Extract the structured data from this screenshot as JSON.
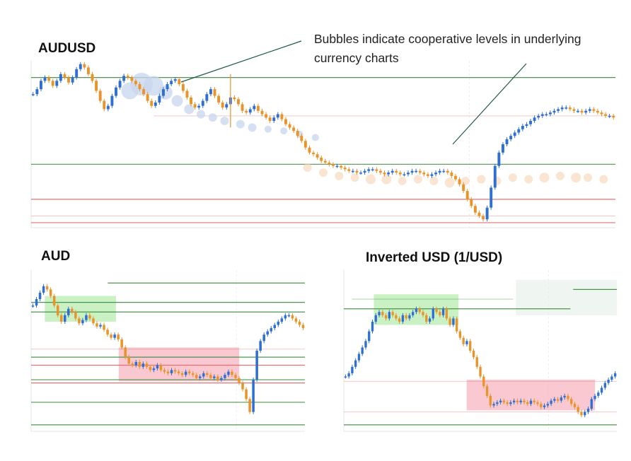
{
  "annotation": {
    "text": "Bubbles indicate cooperative levels in underlying currency charts"
  },
  "colors": {
    "up": "#2f6fd0",
    "down": "#e8942a",
    "support": "#3c8a3c",
    "resistance": "#e06666",
    "green_zone": "#b8ecb0",
    "red_zone": "#f7b6c0",
    "bubble_blue": "#c7d6ee",
    "bubble_orange": "#f6d3b4",
    "annotation_line": "#1f5a4c"
  },
  "chart_data": [
    {
      "id": "main",
      "title": "AUDUSD",
      "type": "candlestick",
      "ylim": [
        0,
        100
      ],
      "series": [
        {
          "name": "",
          "values": [
            80,
            83,
            88,
            90,
            88,
            85,
            88,
            92,
            90,
            87,
            90,
            95,
            98,
            96,
            92,
            88,
            82,
            76,
            71,
            73,
            79,
            84,
            88,
            91,
            90,
            88,
            86,
            83,
            80,
            76,
            73,
            75,
            79,
            83,
            86,
            88,
            89,
            86,
            82,
            78,
            74,
            72,
            73,
            76,
            80,
            83,
            79,
            75,
            72,
            74,
            78,
            77,
            74,
            70,
            69,
            71,
            73,
            70,
            68,
            66,
            64,
            66,
            68,
            65,
            62,
            60,
            58,
            55,
            52,
            48,
            45,
            44,
            42,
            40,
            39,
            38,
            37,
            37,
            36,
            35,
            34,
            34,
            33,
            33,
            34,
            35,
            35,
            34,
            33,
            32,
            33,
            34,
            33,
            32,
            32,
            33,
            34,
            34,
            33,
            32,
            31,
            32,
            33,
            34,
            34,
            33,
            31,
            29,
            26,
            22,
            17,
            13,
            9,
            7,
            5,
            12,
            24,
            37,
            45,
            50,
            53,
            55,
            57,
            59,
            61,
            62,
            64,
            66,
            67,
            68,
            68,
            69,
            70,
            71,
            72,
            72,
            71,
            70,
            70,
            69,
            70,
            71,
            70,
            69,
            68,
            67,
            67,
            66
          ]
        }
      ],
      "horizontal_levels": [
        {
          "value": 90,
          "kind": "support"
        },
        {
          "value": 67,
          "kind": "resistance_faint"
        },
        {
          "value": 38,
          "kind": "support"
        },
        {
          "value": 17,
          "kind": "resistance"
        },
        {
          "value": 7,
          "kind": "resistance_faint"
        },
        {
          "value": 3,
          "kind": "resistance"
        }
      ],
      "spike": {
        "index": 50,
        "value": 92
      },
      "bubbles_blue": [
        [
          25,
          82,
          12
        ],
        [
          28,
          86,
          16
        ],
        [
          31,
          85,
          14
        ],
        [
          34,
          81,
          10
        ],
        [
          37,
          76,
          8
        ],
        [
          40,
          71,
          7
        ],
        [
          43,
          68,
          6
        ],
        [
          46,
          66,
          6
        ],
        [
          49,
          64,
          6
        ],
        [
          53,
          62,
          6
        ],
        [
          56,
          60,
          6
        ],
        [
          60,
          59,
          5
        ],
        [
          64,
          58,
          5
        ],
        [
          68,
          56,
          5
        ],
        [
          72,
          54,
          5
        ]
      ],
      "bubbles_orange": [
        [
          70,
          36,
          6
        ],
        [
          74,
          33,
          6
        ],
        [
          78,
          31,
          6
        ],
        [
          82,
          30,
          6
        ],
        [
          86,
          29,
          7
        ],
        [
          90,
          29,
          7
        ],
        [
          94,
          28,
          6
        ],
        [
          98,
          29,
          6
        ],
        [
          102,
          28,
          6
        ],
        [
          106,
          27,
          7
        ],
        [
          110,
          28,
          6
        ],
        [
          114,
          29,
          6
        ],
        [
          118,
          28,
          6
        ],
        [
          122,
          30,
          6
        ],
        [
          126,
          29,
          6
        ],
        [
          130,
          30,
          7
        ],
        [
          134,
          31,
          6
        ],
        [
          138,
          30,
          7
        ],
        [
          141,
          30,
          6
        ],
        [
          145,
          29,
          6
        ]
      ]
    },
    {
      "id": "aud",
      "title": "AUD",
      "type": "candlestick",
      "ylim": [
        0,
        100
      ],
      "series": [
        {
          "name": "",
          "values": [
            78,
            82,
            86,
            90,
            88,
            84,
            78,
            72,
            68,
            72,
            76,
            74,
            70,
            67,
            69,
            72,
            70,
            67,
            65,
            66,
            63,
            60,
            58,
            60,
            57,
            52,
            46,
            42,
            41,
            43,
            40,
            42,
            40,
            38,
            39,
            41,
            38,
            37,
            36,
            38,
            37,
            36,
            35,
            37,
            36,
            35,
            33,
            34,
            36,
            35,
            33,
            34,
            32,
            33,
            35,
            37,
            35,
            33,
            30,
            26,
            20,
            12,
            32,
            50,
            56,
            60,
            62,
            64,
            66,
            68,
            70,
            72,
            72,
            70,
            68,
            66,
            64
          ]
        }
      ],
      "horizontal_levels": [
        {
          "value": 92,
          "kind": "support"
        },
        {
          "value": 80,
          "kind": "support"
        },
        {
          "value": 74,
          "kind": "support"
        },
        {
          "value": 51,
          "kind": "resistance_faint"
        },
        {
          "value": 46,
          "kind": "support"
        },
        {
          "value": 41,
          "kind": "resistance"
        },
        {
          "value": 32,
          "kind": "support"
        },
        {
          "value": 30,
          "kind": "resistance"
        },
        {
          "value": 18,
          "kind": "support"
        },
        {
          "value": 4,
          "kind": "support"
        }
      ],
      "zones": [
        {
          "kind": "green",
          "x0": 0.05,
          "x1": 0.31,
          "y0": 68,
          "y1": 84
        },
        {
          "kind": "red",
          "x0": 0.32,
          "x1": 0.76,
          "y0": 31,
          "y1": 52
        }
      ]
    },
    {
      "id": "usd",
      "title": "Inverted USD (1/USD)",
      "type": "candlestick",
      "ylim": [
        0,
        100
      ],
      "series": [
        {
          "name": "",
          "values": [
            34,
            36,
            40,
            44,
            48,
            52,
            56,
            62,
            68,
            72,
            74,
            72,
            70,
            74,
            72,
            70,
            68,
            72,
            70,
            72,
            74,
            76,
            74,
            72,
            68,
            70,
            76,
            74,
            72,
            76,
            70,
            66,
            70,
            62,
            58,
            54,
            56,
            50,
            46,
            40,
            34,
            28,
            22,
            16,
            17,
            18,
            19,
            18,
            17,
            18,
            19,
            18,
            19,
            18,
            17,
            19,
            18,
            17,
            15,
            16,
            17,
            19,
            20,
            19,
            21,
            22,
            20,
            17,
            15,
            12,
            10,
            12,
            14,
            20,
            22,
            24,
            27,
            30,
            32,
            34,
            36
          ]
        }
      ],
      "horizontal_levels": [
        {
          "value": 76,
          "kind": "support"
        },
        {
          "value": 88,
          "kind": "support"
        },
        {
          "value": 82,
          "kind": "support"
        },
        {
          "value": 31,
          "kind": "resistance_faint"
        },
        {
          "value": 12,
          "kind": "resistance_faint"
        },
        {
          "value": 4,
          "kind": "support"
        }
      ],
      "zones": [
        {
          "kind": "green",
          "x0": 0.11,
          "x1": 0.42,
          "y0": 66,
          "y1": 85
        },
        {
          "kind": "red",
          "x0": 0.45,
          "x1": 0.92,
          "y0": 13,
          "y1": 32
        },
        {
          "kind": "greygreen",
          "x0": 0.63,
          "x1": 1.0,
          "y0": 72,
          "y1": 94
        }
      ]
    }
  ]
}
